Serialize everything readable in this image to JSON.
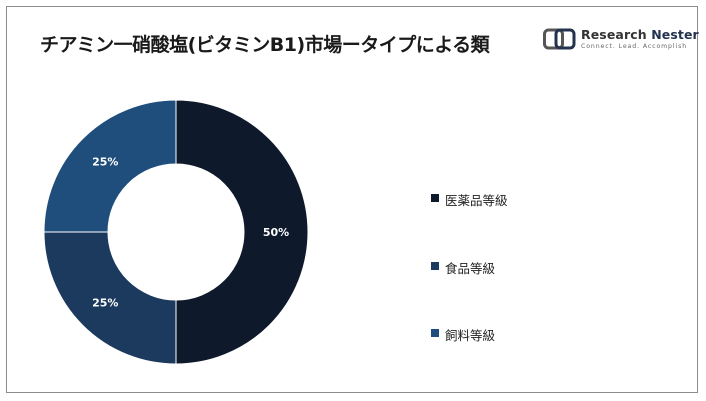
{
  "title": "チアミン一硝酸塩(ビタミンB1)市場ータイプによる類",
  "logo": {
    "name_part1": "Research",
    "name_part2": "Nester",
    "tagline": "Connect. Lead. Accomplish"
  },
  "chart_data": {
    "type": "pie",
    "donut": true,
    "categories": [
      "医薬品等級",
      "食品等級",
      "飼料等級"
    ],
    "values": [
      50,
      25,
      25
    ],
    "data_labels": [
      "50%",
      "25%",
      "25%"
    ],
    "colors": [
      "#0e1a2b",
      "#1b3a5e",
      "#1f4e7c"
    ],
    "legend_position": "right"
  }
}
